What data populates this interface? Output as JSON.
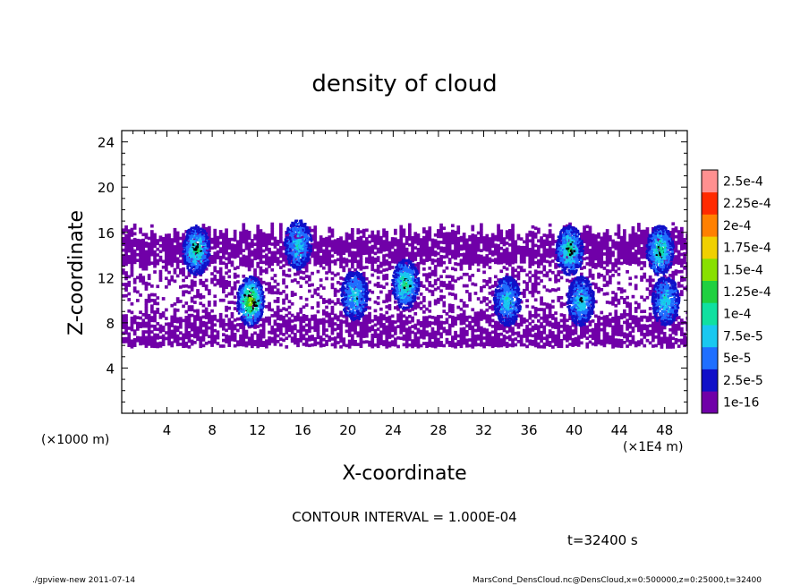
{
  "chart_data": {
    "type": "heatmap",
    "title": "density of cloud",
    "xlabel": "X-coordinate",
    "ylabel": "Z-coordinate",
    "x_unit": "(×1E4 m)",
    "y_unit": "(×1000 m)",
    "xlim": [
      0,
      50
    ],
    "ylim": [
      0,
      25
    ],
    "x_ticks": [
      "4",
      "8",
      "12",
      "16",
      "20",
      "24",
      "28",
      "32",
      "36",
      "40",
      "44",
      "48"
    ],
    "y_ticks": [
      "4",
      "8",
      "12",
      "16",
      "20",
      "24"
    ],
    "colorbar_labels": [
      "1e-16",
      "2.5e-5",
      "5e-5",
      "7.5e-5",
      "1e-4",
      "1.25e-4",
      "1.5e-4",
      "1.75e-4",
      "2e-4",
      "2.25e-4",
      "2.5e-4"
    ],
    "colorbar_colors": [
      "#7000a8",
      "#1010c8",
      "#1f6fff",
      "#19c8f0",
      "#10e0a0",
      "#20d040",
      "#88e000",
      "#f0d000",
      "#ff8000",
      "#ff2a00",
      "#ff9090"
    ],
    "contour_interval": "CONTOUR INTERVAL = 1.000E-04",
    "time": "t=32400 s",
    "cloud_band": {
      "z_bottom": 6,
      "z_top": 16.5
    },
    "hotspots": [
      {
        "x": 6.5,
        "z": 14.5,
        "level": 4
      },
      {
        "x": 11.3,
        "z": 10.0,
        "level": 6
      },
      {
        "x": 15.5,
        "z": 15.0,
        "level": 3
      },
      {
        "x": 20.5,
        "z": 10.5,
        "level": 3
      },
      {
        "x": 25.0,
        "z": 11.5,
        "level": 4
      },
      {
        "x": 34.0,
        "z": 10.0,
        "level": 3
      },
      {
        "x": 39.5,
        "z": 14.5,
        "level": 4
      },
      {
        "x": 40.5,
        "z": 10.0,
        "level": 3
      },
      {
        "x": 47.5,
        "z": 14.5,
        "level": 4
      },
      {
        "x": 48.0,
        "z": 10.0,
        "level": 3
      }
    ]
  },
  "footer": {
    "left": "./gpview-new   2011-07-14",
    "right": "MarsCond_DensCloud.nc@DensCloud,x=0:500000,z=0:25000,t=32400"
  }
}
